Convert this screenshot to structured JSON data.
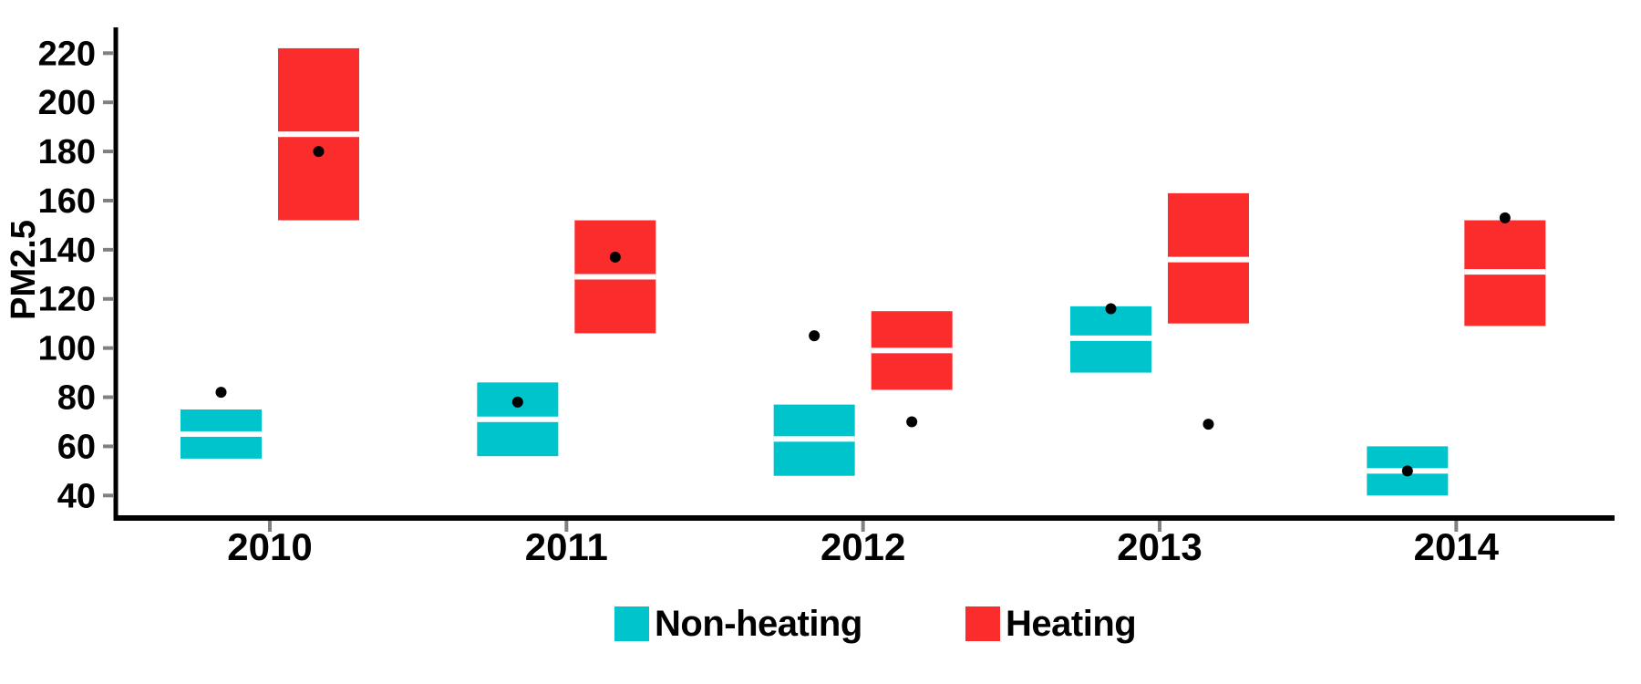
{
  "chart_data": {
    "type": "crossbar",
    "title": "",
    "xlabel": "",
    "ylabel": "PM2.5",
    "categories": [
      "2010",
      "2011",
      "2012",
      "2013",
      "2014"
    ],
    "y_ticks": [
      40,
      60,
      80,
      100,
      120,
      140,
      160,
      180,
      200,
      220
    ],
    "ylim": [
      31,
      231
    ],
    "grid": false,
    "legend_position": "bottom",
    "axis_color": "#000000",
    "tick_mark_color": "#808080",
    "tick_label_color": "#000000",
    "point_color": "#000000",
    "midline_color": "#ffffff",
    "series": [
      {
        "name": "Non-heating",
        "color": "#00C4CC",
        "boxes": [
          {
            "category": "2010",
            "lower": 55,
            "mid": 65,
            "upper": 75,
            "point": 82
          },
          {
            "category": "2011",
            "lower": 56,
            "mid": 71,
            "upper": 86,
            "point": 78
          },
          {
            "category": "2012",
            "lower": 48,
            "mid": 63,
            "upper": 77,
            "point": 105
          },
          {
            "category": "2013",
            "lower": 90,
            "mid": 104,
            "upper": 117,
            "point": 116
          },
          {
            "category": "2014",
            "lower": 40,
            "mid": 50,
            "upper": 60,
            "point": 50
          }
        ]
      },
      {
        "name": "Heating",
        "color": "#FB2C2C",
        "boxes": [
          {
            "category": "2010",
            "lower": 152,
            "mid": 187,
            "upper": 222,
            "point": 180
          },
          {
            "category": "2011",
            "lower": 106,
            "mid": 129,
            "upper": 152,
            "point": 137
          },
          {
            "category": "2012",
            "lower": 83,
            "mid": 99,
            "upper": 115,
            "point": 70
          },
          {
            "category": "2013",
            "lower": 110,
            "mid": 136,
            "upper": 163,
            "point": 69
          },
          {
            "category": "2014",
            "lower": 109,
            "mid": 131,
            "upper": 152,
            "point": 153
          }
        ]
      }
    ]
  },
  "legend": {
    "items": [
      {
        "label": "Non-heating",
        "color": "#00C4CC"
      },
      {
        "label": "Heating",
        "color": "#FB2C2C"
      }
    ]
  }
}
